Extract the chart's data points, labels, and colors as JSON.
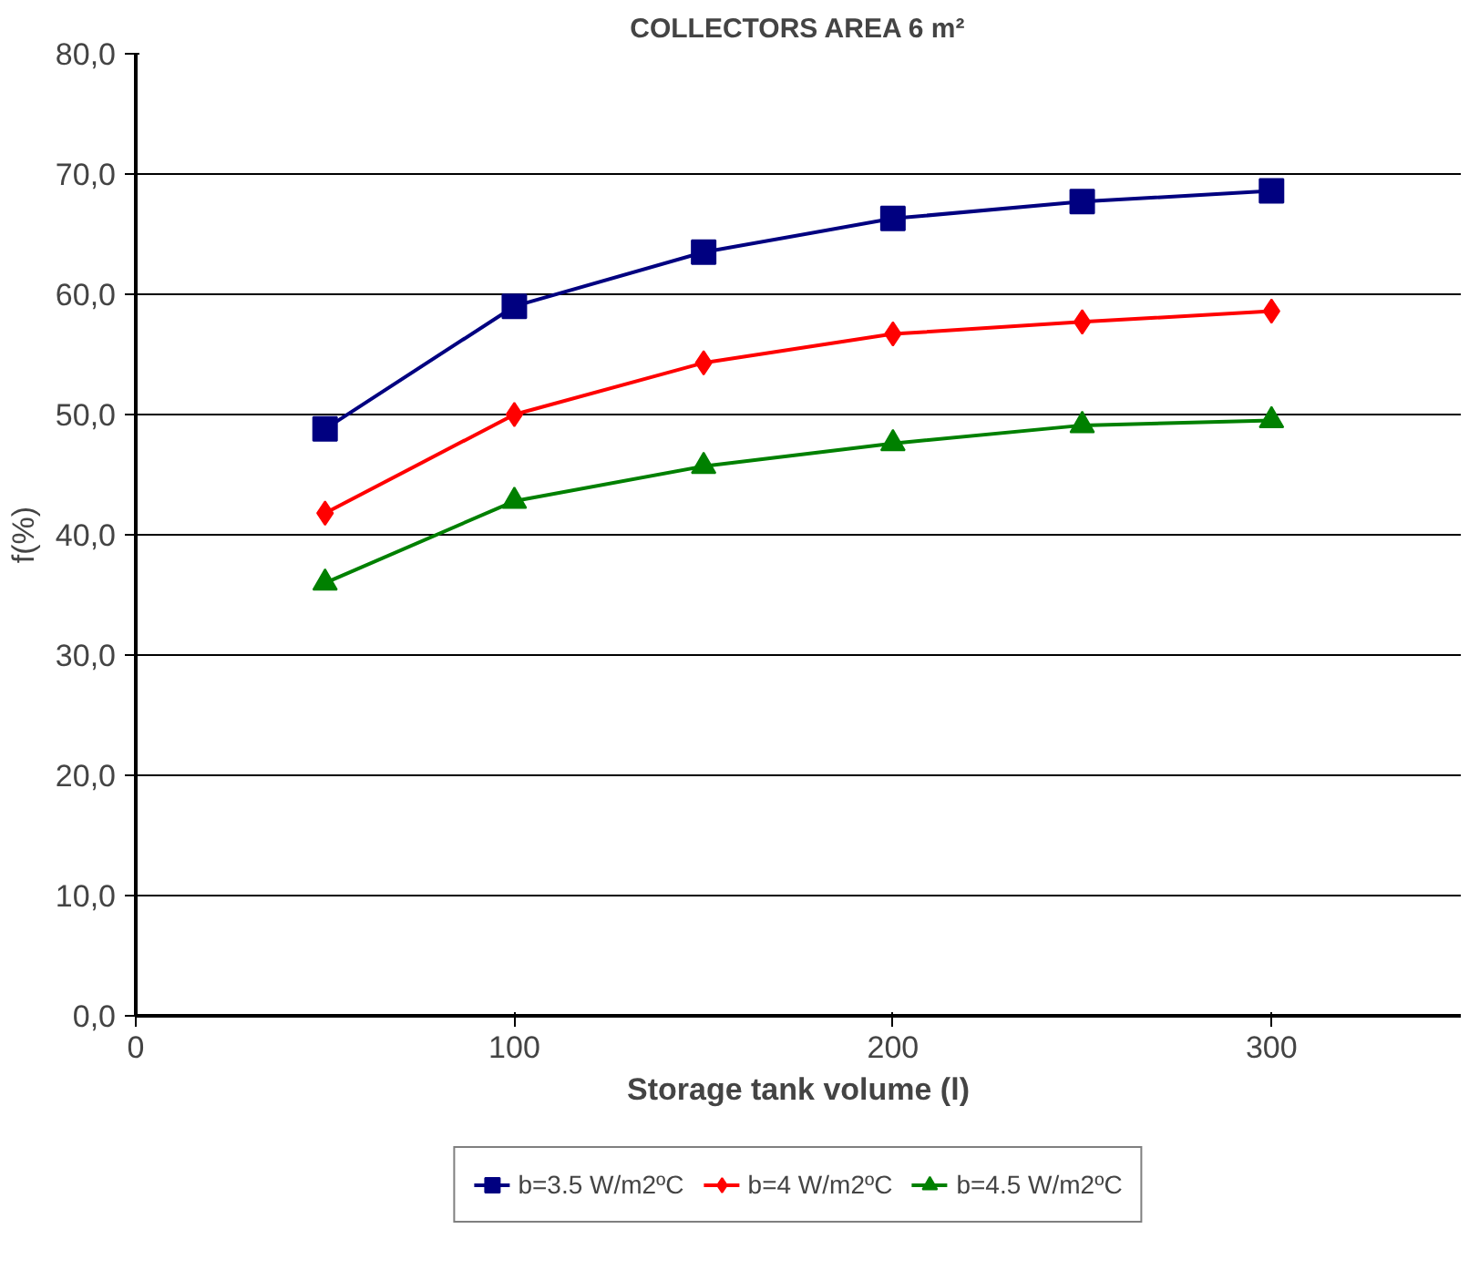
{
  "chart_data": {
    "type": "line",
    "title": "COLLECTORS AREA 6 m²",
    "xlabel": "Storage tank volume (l)",
    "ylabel": "f(%)",
    "x": [
      50,
      100,
      150,
      200,
      250,
      300
    ],
    "series": [
      {
        "name": "b=3.5 W/m2ºC",
        "color": "#000080",
        "marker": "square",
        "values": [
          48.8,
          59.0,
          63.5,
          66.3,
          67.7,
          68.6
        ]
      },
      {
        "name": "b=4 W/m2ºC",
        "color": "#ff0000",
        "marker": "diamond",
        "values": [
          41.8,
          50.0,
          54.3,
          56.7,
          57.7,
          58.6
        ]
      },
      {
        "name": "b=4.5 W/m2ºC",
        "color": "#008000",
        "marker": "triangle",
        "values": [
          36.0,
          42.8,
          45.7,
          47.6,
          49.1,
          49.5
        ]
      }
    ],
    "xlim": [
      0,
      350
    ],
    "xticks": [
      0,
      100,
      200,
      300
    ],
    "ylim": [
      0,
      80
    ],
    "yticks": [
      {
        "value": 0,
        "label": "0,0"
      },
      {
        "value": 10,
        "label": "10,0"
      },
      {
        "value": 20,
        "label": "20,0"
      },
      {
        "value": 30,
        "label": "30,0"
      },
      {
        "value": 40,
        "label": "40,0"
      },
      {
        "value": 50,
        "label": "50,0"
      },
      {
        "value": 60,
        "label": "60,0"
      },
      {
        "value": 70,
        "label": "70,0"
      },
      {
        "value": 80,
        "label": "80,0"
      }
    ],
    "grid": "y",
    "legend": "bottom",
    "line_style": "solid"
  }
}
